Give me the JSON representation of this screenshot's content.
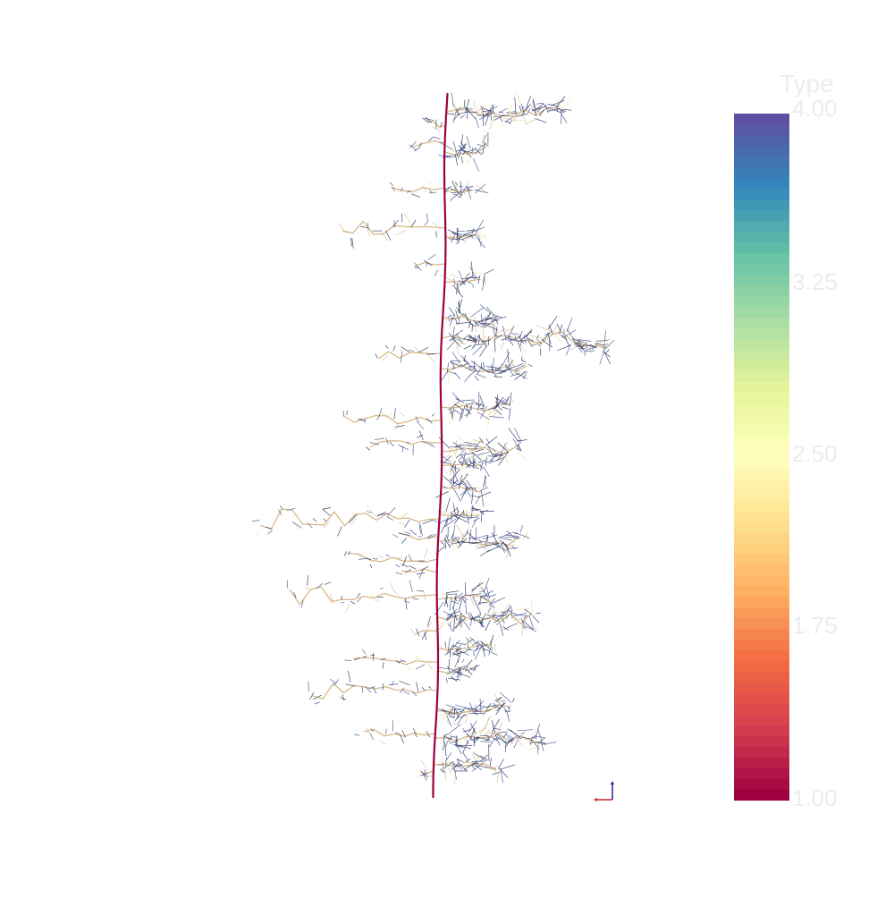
{
  "scene": {
    "background": "#ffffff",
    "main_root_color": "#9e0142",
    "lateral_colors": [
      "#d9b98a",
      "#1e2a5a",
      "#3a4a8a",
      "#e6e0a0"
    ]
  },
  "colorbar": {
    "title": "Type",
    "labels": [
      "4.00",
      "3.25",
      "2.50",
      "1.75",
      "1.00"
    ],
    "stops": [
      "#5e4fa2",
      "#3288bd",
      "#66c2a5",
      "#abdda4",
      "#e6f598",
      "#ffffbf",
      "#fee08b",
      "#fdae61",
      "#f46d43",
      "#d53e4f",
      "#9e0142"
    ],
    "bands": 64,
    "label_color": "#ececec"
  },
  "orientation_axes": {
    "x_color": "#cc2222",
    "y_color": "#1a1a8c"
  }
}
